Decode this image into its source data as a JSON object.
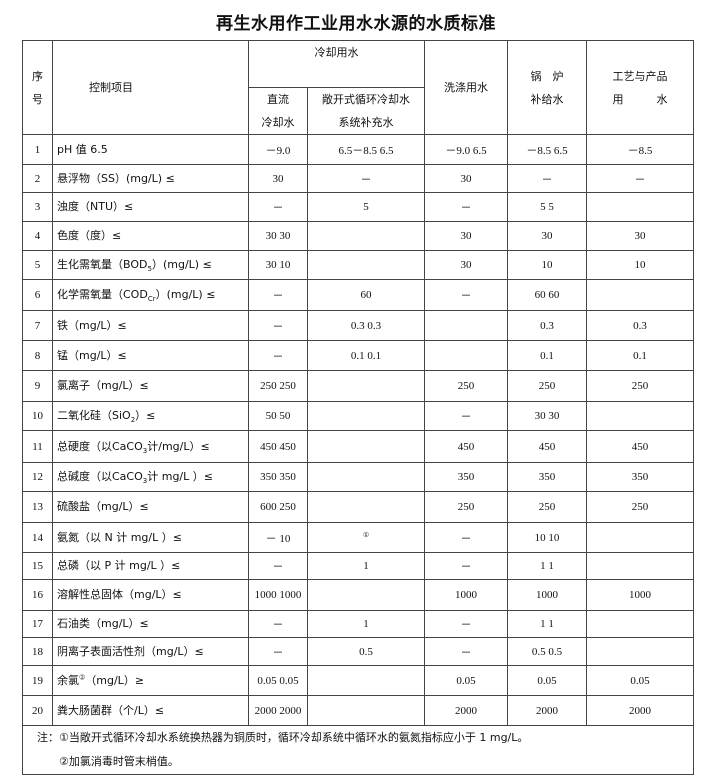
{
  "title": "再生水用作工业用水水源的水质标准",
  "header": {
    "seq": "序\n号",
    "seq_top": "序",
    "seq_bottom": "号",
    "item": "控制项目",
    "cooling": "冷却用水",
    "direct_1": "直流",
    "direct_2": "冷却水",
    "open_1": "敞开式循环冷却水",
    "open_2": "系统补充水",
    "washing": "洗涤用水",
    "boiler_1": "锅　炉",
    "boiler_2": "补给水",
    "process_1": "工艺与产品",
    "process_2": "用　　　水"
  },
  "rows": [
    {
      "no": "1",
      "item": {
        "pre": "pH 值 6.5",
        "sub": "",
        "post": ""
      },
      "vals": [
        "－9.0",
        "6.5－8.5 6.5",
        "－9.0 6.5",
        "－8.5 6.5",
        "－8.5"
      ]
    },
    {
      "no": "2",
      "item": {
        "pre": "悬浮物（SS）(mg/L) ≤",
        "sub": "",
        "post": ""
      },
      "vals": [
        "30",
        "－",
        "30",
        "－",
        "－"
      ]
    },
    {
      "no": "3",
      "item": {
        "pre": "浊度（NTU）≤",
        "sub": "",
        "post": ""
      },
      "vals": [
        "－",
        "5",
        "－",
        "5 5",
        ""
      ]
    },
    {
      "no": "4",
      "item": {
        "pre": "色度（度）≤",
        "sub": "",
        "post": ""
      },
      "vals": [
        "30 30",
        "",
        "30",
        "30",
        "30"
      ]
    },
    {
      "no": "5",
      "item": {
        "pre": "生化需氧量（BOD",
        "sub": "5",
        "post": "）(mg/L) ≤"
      },
      "vals": [
        "30 10",
        "",
        "30",
        "10",
        "10"
      ]
    },
    {
      "no": "6",
      "item": {
        "pre": "化学需氧量（COD",
        "sub": "Cr",
        "post": "）(mg/L) ≤"
      },
      "vals": [
        "－",
        "60",
        "－",
        "60 60",
        ""
      ]
    },
    {
      "no": "7",
      "item": {
        "pre": "铁（mg/L）≤",
        "sub": "",
        "post": ""
      },
      "vals": [
        "－",
        "0.3 0.3",
        "",
        "0.3",
        "0.3"
      ]
    },
    {
      "no": "8",
      "item": {
        "pre": "锰（mg/L）≤",
        "sub": "",
        "post": ""
      },
      "vals": [
        "－",
        "0.1 0.1",
        "",
        "0.1",
        "0.1"
      ]
    },
    {
      "no": "9",
      "item": {
        "pre": "氯离子（mg/L）≤",
        "sub": "",
        "post": ""
      },
      "vals": [
        "250 250",
        "",
        "250",
        "250",
        "250"
      ]
    },
    {
      "no": "10",
      "item": {
        "pre": "二氧化硅（SiO",
        "sub": "2",
        "post": "）≤"
      },
      "vals": [
        "50 50",
        "",
        "－",
        "30 30",
        ""
      ]
    },
    {
      "no": "11",
      "item": {
        "pre": "总硬度（以CaCO",
        "sub": "3",
        "post": "计/mg/L）≤"
      },
      "vals": [
        "450 450",
        "",
        "450",
        "450",
        "450"
      ]
    },
    {
      "no": "12",
      "item": {
        "pre": "总碱度（以CaCO",
        "sub": "3",
        "post": "计 mg/L ）≤"
      },
      "vals": [
        "350 350",
        "",
        "350",
        "350",
        "350"
      ]
    },
    {
      "no": "13",
      "item": {
        "pre": "硫酸盐（mg/L）≤",
        "sub": "",
        "post": ""
      },
      "vals": [
        "600 250",
        "",
        "250",
        "250",
        "250"
      ]
    },
    {
      "no": "14",
      "item": {
        "pre": "氨氮（以 N 计 mg/L ）≤",
        "sub": "",
        "post": ""
      },
      "vals": [
        "－ 10",
        "①",
        "－",
        "10 10",
        ""
      ]
    },
    {
      "no": "15",
      "item": {
        "pre": "总磷（以 P 计 mg/L ）≤",
        "sub": "",
        "post": ""
      },
      "vals": [
        "－",
        "1",
        "－",
        "1 1",
        ""
      ]
    },
    {
      "no": "16",
      "item": {
        "pre": "溶解性总固体（mg/L）≤",
        "sub": "",
        "post": ""
      },
      "vals": [
        "1000 1000",
        "",
        "1000",
        "1000",
        "1000"
      ]
    },
    {
      "no": "17",
      "item": {
        "pre": "石油类（mg/L）≤",
        "sub": "",
        "post": ""
      },
      "vals": [
        "－",
        "1",
        "－",
        "1 1",
        ""
      ]
    },
    {
      "no": "18",
      "item": {
        "pre": "阴离子表面活性剂（mg/L）≤",
        "sub": "",
        "post": ""
      },
      "vals": [
        "－",
        "0.5",
        "－",
        "0.5 0.5",
        ""
      ]
    },
    {
      "no": "19",
      "item": {
        "pre": "余氯",
        "sup": "②",
        "sub": "",
        "post": "（mg/L）≥"
      },
      "vals": [
        "0.05 0.05",
        "",
        "0.05",
        "0.05",
        "0.05"
      ]
    },
    {
      "no": "20",
      "item": {
        "pre": "粪大肠菌群（个/L）≤",
        "sub": "",
        "post": ""
      },
      "vals": [
        "2000 2000",
        "",
        "2000",
        "2000",
        "2000"
      ]
    }
  ],
  "notes": [
    "注：①当敞开式循环冷却水系统换热器为铜质时，循环冷却系统中循环水的氨氮指标应小于 1 mg/L。",
    "　　②加氯消毒时管末梢值。"
  ]
}
